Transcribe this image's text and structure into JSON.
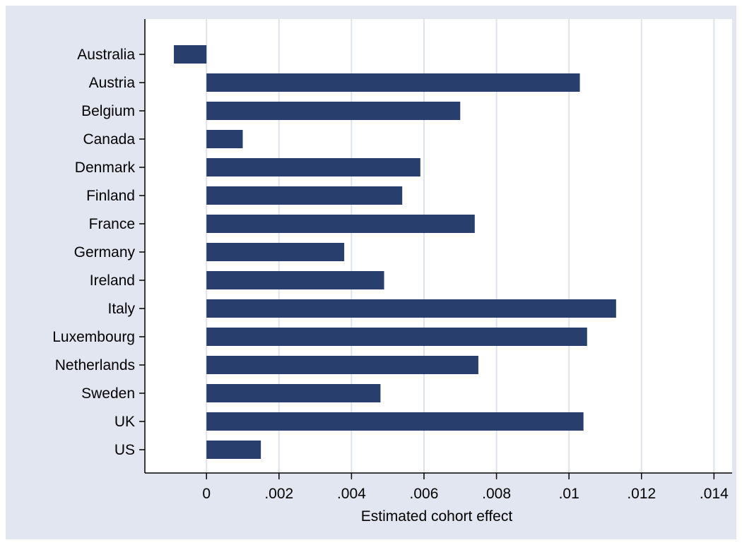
{
  "chart_data": {
    "type": "bar",
    "orientation": "horizontal",
    "title": "",
    "xlabel": "Estimated cohort effect",
    "ylabel": "",
    "categories": [
      "Australia",
      "Austria",
      "Belgium",
      "Canada",
      "Denmark",
      "Finland",
      "France",
      "Germany",
      "Ireland",
      "Italy",
      "Luxembourg",
      "Netherlands",
      "Sweden",
      "UK",
      "US"
    ],
    "values": [
      -0.0009,
      0.0103,
      0.007,
      0.001,
      0.0059,
      0.0054,
      0.0074,
      0.0038,
      0.0049,
      0.0113,
      0.0105,
      0.0075,
      0.0048,
      0.0104,
      0.0015
    ],
    "xlim": [
      -0.0017,
      0.0145
    ],
    "xticks": [
      0,
      0.002,
      0.004,
      0.006,
      0.008,
      0.01,
      0.012,
      0.014
    ],
    "xtick_labels": [
      "0",
      ".002",
      ".004",
      ".006",
      ".008",
      ".01",
      ".012",
      ".014"
    ],
    "grid": "vertical",
    "legend": "none",
    "colors": {
      "bar": "#283f6d",
      "panel_background": "#e2e6f0",
      "plot_background": "#ffffff",
      "gridline": "#dde2ec",
      "axis": "#000000"
    }
  }
}
